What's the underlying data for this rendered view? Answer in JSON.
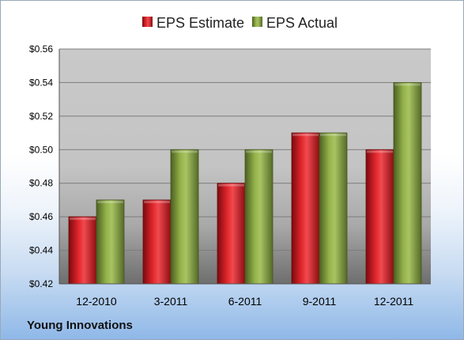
{
  "company": "Young Innovations",
  "colors": {
    "estimate": "#c8151c",
    "actual": "#7f9c3c"
  },
  "chart_data": {
    "type": "bar",
    "categories": [
      "12-2010",
      "3-2011",
      "6-2011",
      "9-2011",
      "12-2011"
    ],
    "series": [
      {
        "name": "EPS Estimate",
        "values": [
          0.46,
          0.47,
          0.48,
          0.51,
          0.5
        ]
      },
      {
        "name": "EPS Actual",
        "values": [
          0.47,
          0.5,
          0.5,
          0.51,
          0.54
        ]
      }
    ],
    "ylim": [
      0.42,
      0.56
    ],
    "yticks": [
      "$0.42",
      "$0.44",
      "$0.46",
      "$0.48",
      "$0.50",
      "$0.52",
      "$0.54",
      "$0.56"
    ],
    "ytick_values": [
      0.42,
      0.44,
      0.46,
      0.48,
      0.5,
      0.52,
      0.54,
      0.56
    ],
    "legend": "top",
    "grid": true
  }
}
